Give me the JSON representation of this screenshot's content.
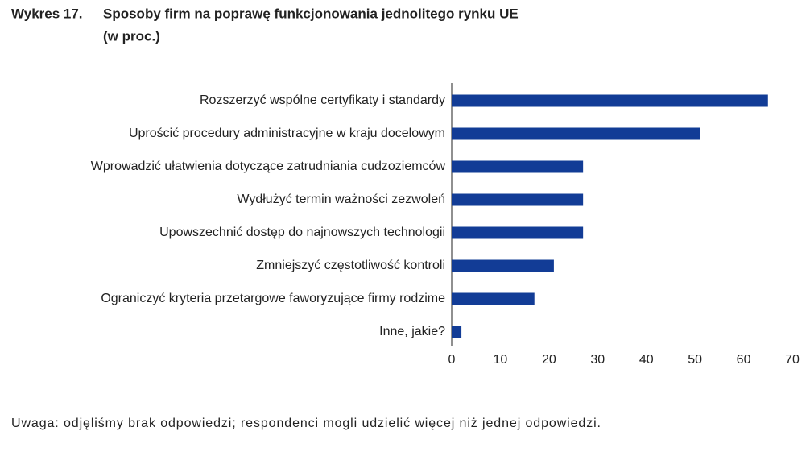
{
  "chart_data": {
    "type": "bar",
    "orientation": "horizontal",
    "label": "Wykres 17.",
    "title": [
      "Sposoby firm na poprawę funkcjonowania jednolitego rynku UE",
      "(w proc.)"
    ],
    "categories": [
      "Rozszerzyć wspólne certyfikaty i standardy",
      "Uprościć procedury administracyjne w kraju docelowym",
      "Wprowadzić ułatwienia dotyczące zatrudniania cudzoziemców",
      "Wydłużyć termin ważności zezwoleń",
      "Upowszechnić dostęp do najnowszych technologii",
      "Zmniejszyć częstotliwość kontroli",
      "Ograniczyć kryteria przetargowe faworyzujące firmy rodzime",
      "Inne, jakie?"
    ],
    "values": [
      65,
      51,
      27,
      27,
      27,
      21,
      17,
      2
    ],
    "color": "#123c96",
    "xlim": [
      0,
      70
    ],
    "xticks": [
      0,
      10,
      20,
      30,
      40,
      50,
      60,
      70
    ],
    "grid": false,
    "note": "Uwaga: odjęliśmy brak odpowiedzi; respondenci mogli udzielić więcej niż jednej odpowiedzi."
  }
}
